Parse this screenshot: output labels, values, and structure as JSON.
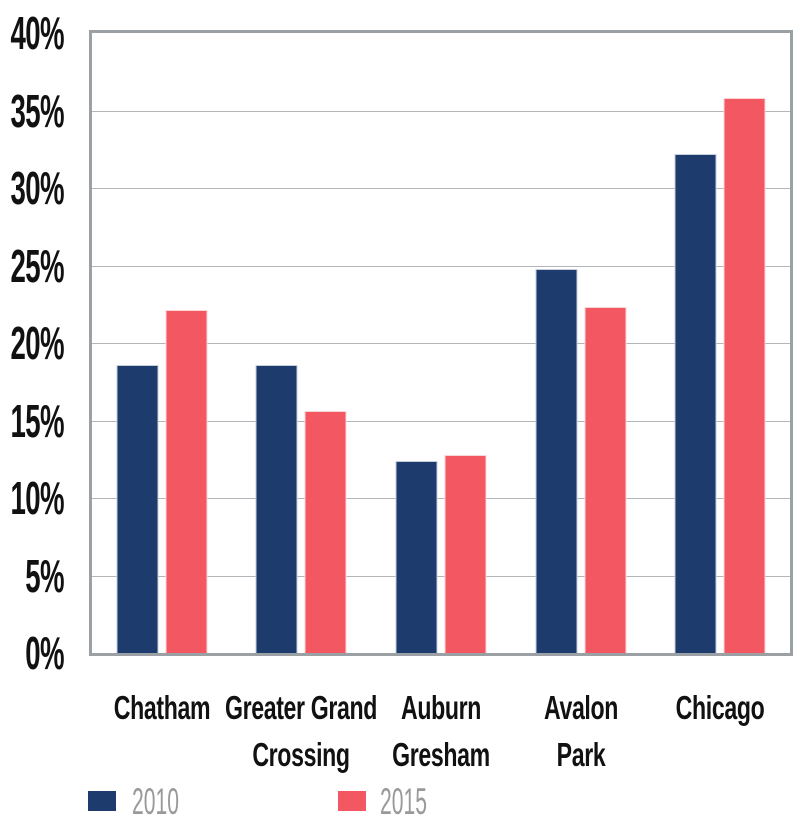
{
  "chart_data": {
    "type": "bar",
    "title": "",
    "xlabel": "",
    "ylabel": "",
    "categories": [
      "Chatham",
      "Greater Grand\nCrossing",
      "Auburn\nGresham",
      "Avalon\nPark",
      "Chicago"
    ],
    "series": [
      {
        "name": "2010",
        "color": "#1D3C6D",
        "values": [
          18.6,
          18.6,
          12.4,
          24.8,
          32.2
        ]
      },
      {
        "name": "2015",
        "color": "#F25762",
        "values": [
          22.1,
          15.6,
          12.8,
          22.3,
          35.8
        ]
      }
    ],
    "ylim": [
      0,
      40
    ],
    "ytick_step": 5,
    "yticks": [
      "40%",
      "35%",
      "30%",
      "25%",
      "20%",
      "15%",
      "10%",
      "5%",
      "0%"
    ],
    "grid": true,
    "legend_position": "bottom-left",
    "colors": {
      "background": "#FFFFFF",
      "plot_border": "#9BA0A5",
      "gridline": "#B3B6B9",
      "axis_text": "#111111",
      "legend_text": "#97999B"
    }
  }
}
